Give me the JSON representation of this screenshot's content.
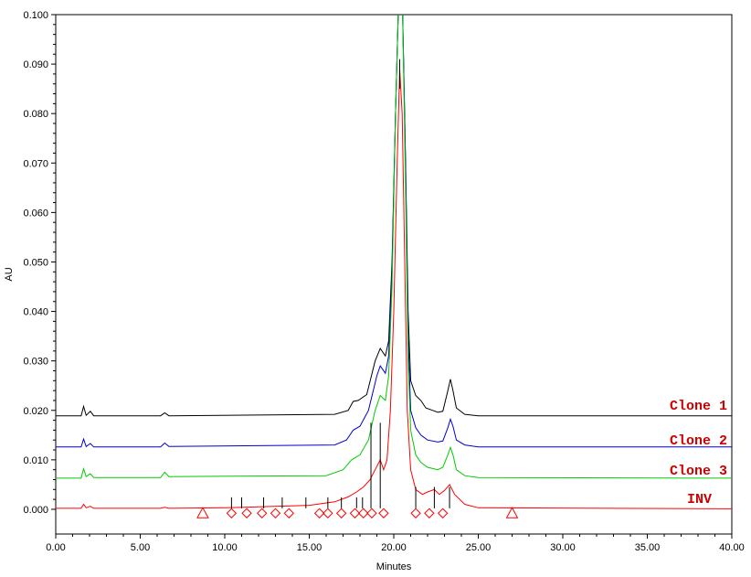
{
  "chart_data": {
    "type": "line",
    "xlabel": "Minutes",
    "ylabel": "AU",
    "xlim": [
      0,
      40
    ],
    "ylim": [
      -0.005,
      0.1
    ],
    "x_ticks": [
      "0.00",
      "5.00",
      "10.00",
      "15.00",
      "20.00",
      "25.00",
      "30.00",
      "35.00",
      "40.00"
    ],
    "y_ticks": [
      "0.000",
      "0.010",
      "0.020",
      "0.030",
      "0.040",
      "0.050",
      "0.060",
      "0.070",
      "0.080",
      "0.090",
      "0.100"
    ],
    "x_tick_values": [
      0,
      5,
      10,
      15,
      20,
      25,
      30,
      35,
      40
    ],
    "y_tick_values": [
      0,
      0.01,
      0.02,
      0.03,
      0.04,
      0.05,
      0.06,
      0.07,
      0.08,
      0.09,
      0.1
    ],
    "grid": false,
    "series": [
      {
        "name": "Clone 1",
        "color": "#000000",
        "points": [
          [
            0,
            0.0189
          ],
          [
            1.5,
            0.0189
          ],
          [
            1.65,
            0.0208
          ],
          [
            1.8,
            0.019
          ],
          [
            2.05,
            0.0198
          ],
          [
            2.25,
            0.0189
          ],
          [
            6.2,
            0.0189
          ],
          [
            6.45,
            0.0195
          ],
          [
            6.7,
            0.0189
          ],
          [
            16.5,
            0.0192
          ],
          [
            17.3,
            0.02
          ],
          [
            17.6,
            0.0218
          ],
          [
            17.9,
            0.022
          ],
          [
            18.4,
            0.0232
          ],
          [
            18.9,
            0.03
          ],
          [
            19.2,
            0.0325
          ],
          [
            19.5,
            0.031
          ],
          [
            19.7,
            0.034
          ],
          [
            19.9,
            0.05
          ],
          [
            20.1,
            0.08
          ],
          [
            20.3,
            0.105
          ],
          [
            20.5,
            0.105
          ],
          [
            20.7,
            0.07
          ],
          [
            20.85,
            0.04
          ],
          [
            21.0,
            0.026
          ],
          [
            21.3,
            0.023
          ],
          [
            21.6,
            0.022
          ],
          [
            21.9,
            0.0205
          ],
          [
            22.3,
            0.02
          ],
          [
            22.6,
            0.0196
          ],
          [
            22.9,
            0.0198
          ],
          [
            23.2,
            0.024
          ],
          [
            23.35,
            0.0263
          ],
          [
            23.5,
            0.024
          ],
          [
            23.7,
            0.0205
          ],
          [
            24.2,
            0.0192
          ],
          [
            25.0,
            0.0189
          ],
          [
            40,
            0.0189
          ]
        ]
      },
      {
        "name": "Clone 2",
        "color": "#0000cc",
        "points": [
          [
            0,
            0.0126
          ],
          [
            1.5,
            0.0126
          ],
          [
            1.65,
            0.0142
          ],
          [
            1.8,
            0.0127
          ],
          [
            2.05,
            0.0133
          ],
          [
            2.25,
            0.0126
          ],
          [
            6.2,
            0.0126
          ],
          [
            6.45,
            0.0134
          ],
          [
            6.7,
            0.0127
          ],
          [
            16.5,
            0.013
          ],
          [
            17.2,
            0.014
          ],
          [
            17.6,
            0.016
          ],
          [
            18.0,
            0.0168
          ],
          [
            18.5,
            0.02
          ],
          [
            19.0,
            0.027
          ],
          [
            19.2,
            0.029
          ],
          [
            19.5,
            0.0275
          ],
          [
            19.7,
            0.031
          ],
          [
            19.9,
            0.048
          ],
          [
            20.1,
            0.08
          ],
          [
            20.3,
            0.105
          ],
          [
            20.5,
            0.105
          ],
          [
            20.7,
            0.07
          ],
          [
            20.85,
            0.035
          ],
          [
            21.0,
            0.02
          ],
          [
            21.3,
            0.0165
          ],
          [
            21.6,
            0.015
          ],
          [
            22.0,
            0.014
          ],
          [
            22.6,
            0.0136
          ],
          [
            22.9,
            0.0138
          ],
          [
            23.2,
            0.0165
          ],
          [
            23.35,
            0.0182
          ],
          [
            23.5,
            0.0168
          ],
          [
            23.7,
            0.014
          ],
          [
            24.2,
            0.013
          ],
          [
            25.0,
            0.0126
          ],
          [
            40,
            0.0126
          ]
        ]
      },
      {
        "name": "Clone 3",
        "color": "#00cc00",
        "points": [
          [
            0,
            0.0063
          ],
          [
            1.5,
            0.0063
          ],
          [
            1.65,
            0.0082
          ],
          [
            1.8,
            0.0066
          ],
          [
            2.05,
            0.0072
          ],
          [
            2.25,
            0.0064
          ],
          [
            6.2,
            0.0064
          ],
          [
            6.45,
            0.0075
          ],
          [
            6.7,
            0.0066
          ],
          [
            16.0,
            0.0068
          ],
          [
            17.0,
            0.008
          ],
          [
            17.5,
            0.01
          ],
          [
            18.0,
            0.011
          ],
          [
            18.5,
            0.014
          ],
          [
            18.9,
            0.02
          ],
          [
            19.2,
            0.023
          ],
          [
            19.5,
            0.022
          ],
          [
            19.7,
            0.027
          ],
          [
            19.9,
            0.045
          ],
          [
            20.1,
            0.08
          ],
          [
            20.3,
            0.105
          ],
          [
            20.5,
            0.105
          ],
          [
            20.7,
            0.065
          ],
          [
            20.85,
            0.03
          ],
          [
            21.0,
            0.016
          ],
          [
            21.3,
            0.011
          ],
          [
            21.6,
            0.0095
          ],
          [
            22.0,
            0.0085
          ],
          [
            22.6,
            0.008
          ],
          [
            22.9,
            0.0085
          ],
          [
            23.2,
            0.011
          ],
          [
            23.35,
            0.0125
          ],
          [
            23.5,
            0.011
          ],
          [
            23.7,
            0.008
          ],
          [
            24.2,
            0.0068
          ],
          [
            25.0,
            0.0064
          ],
          [
            40,
            0.0063
          ]
        ]
      },
      {
        "name": "INV",
        "color": "#ff0000",
        "points": [
          [
            0,
            0.0002
          ],
          [
            1.5,
            0.0002
          ],
          [
            1.65,
            0.001
          ],
          [
            1.8,
            0.0003
          ],
          [
            2.05,
            0.0006
          ],
          [
            2.25,
            0.0002
          ],
          [
            6.2,
            0.0002
          ],
          [
            6.45,
            0.0004
          ],
          [
            6.7,
            0.0002
          ],
          [
            10.0,
            0.0003
          ],
          [
            15.0,
            0.0008
          ],
          [
            16.5,
            0.0015
          ],
          [
            17.3,
            0.0025
          ],
          [
            17.8,
            0.0035
          ],
          [
            18.2,
            0.0045
          ],
          [
            18.6,
            0.006
          ],
          [
            18.9,
            0.008
          ],
          [
            19.2,
            0.01
          ],
          [
            19.4,
            0.008
          ],
          [
            19.6,
            0.01
          ],
          [
            19.8,
            0.02
          ],
          [
            20.0,
            0.04
          ],
          [
            20.2,
            0.07
          ],
          [
            20.35,
            0.089
          ],
          [
            20.5,
            0.08
          ],
          [
            20.65,
            0.05
          ],
          [
            20.8,
            0.02
          ],
          [
            21.0,
            0.008
          ],
          [
            21.3,
            0.004
          ],
          [
            21.7,
            0.003
          ],
          [
            22.0,
            0.0035
          ],
          [
            22.4,
            0.004
          ],
          [
            22.7,
            0.003
          ],
          [
            23.0,
            0.0038
          ],
          [
            23.3,
            0.005
          ],
          [
            23.6,
            0.003
          ],
          [
            24.2,
            0.001
          ],
          [
            25.0,
            0.0003
          ],
          [
            40,
            0.0001
          ]
        ]
      }
    ],
    "integration_ticks": [
      10.4,
      11.0,
      12.3,
      13.4,
      14.8,
      16.1,
      16.9,
      17.8,
      18.15,
      18.65,
      19.2,
      21.3,
      22.4,
      23.3
    ],
    "diamond_markers": [
      10.4,
      11.3,
      12.2,
      13.0,
      13.8,
      15.6,
      16.1,
      16.9,
      17.7,
      18.2,
      18.7,
      19.4,
      21.3,
      22.1,
      22.9
    ],
    "triangle_markers": [
      8.7,
      27.0
    ]
  },
  "labels": {
    "clone1": "Clone 1",
    "clone2": "Clone 2",
    "clone3": "Clone 3",
    "inv": "INV",
    "xlabel": "Minutes",
    "ylabel": "AU"
  }
}
